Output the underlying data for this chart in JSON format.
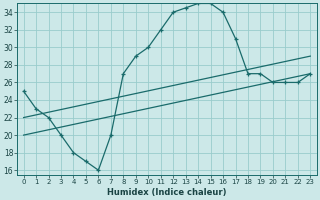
{
  "xlabel": "Humidex (Indice chaleur)",
  "bg_color": "#cce8e8",
  "grid_color": "#99cccc",
  "line_color": "#1a6b6b",
  "xlim": [
    -0.5,
    23.5
  ],
  "ylim": [
    15.5,
    35.0
  ],
  "xticks": [
    0,
    1,
    2,
    3,
    4,
    5,
    6,
    7,
    8,
    9,
    10,
    11,
    12,
    13,
    14,
    15,
    16,
    17,
    18,
    19,
    20,
    21,
    22,
    23
  ],
  "yticks": [
    16,
    18,
    20,
    22,
    24,
    26,
    28,
    30,
    32,
    34
  ],
  "curve1_x": [
    0,
    1,
    2,
    3,
    4,
    5,
    6,
    7,
    8,
    9,
    10,
    11,
    12,
    13,
    14,
    15,
    16,
    17,
    18,
    19,
    20,
    21,
    22,
    23
  ],
  "curve1_y": [
    25,
    23,
    22,
    20,
    18,
    17,
    16,
    20,
    27,
    29,
    30,
    32,
    34,
    34.5,
    35,
    35,
    34,
    31,
    27,
    27,
    26,
    26,
    26,
    27
  ],
  "curve2_x": [
    0,
    23
  ],
  "curve2_y": [
    20,
    27
  ],
  "curve3_x": [
    0,
    23
  ],
  "curve3_y": [
    22,
    29
  ]
}
